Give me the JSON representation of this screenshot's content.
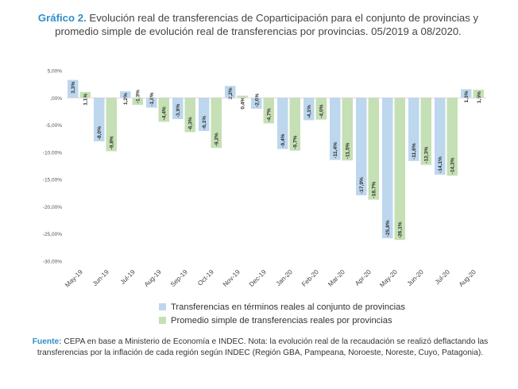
{
  "header": {
    "lead": "Gráfico 2.",
    "text": "Evolución real de transferencias de Coparticipación para el conjunto de provincias y promedio simple de evolución real de transferencias por provincias. 05/2019 a 08/2020."
  },
  "footer": {
    "lead": "Fuente:",
    "text": "CEPA en base a Ministerio de Economía e INDEC. Nota: la evolución real de la recaudación se realizó deflactando las transferencias por la inflación de cada región según INDEC (Región GBA, Pampeana, Noroeste, Noreste, Cuyo, Patagonia)."
  },
  "chart_data": {
    "type": "bar",
    "categories": [
      "May-19",
      "Jun-19",
      "Jul-19",
      "Aug-19",
      "Sep-19",
      "Oct-19",
      "Nov-19",
      "Dec-19",
      "Jan-20",
      "Feb-20",
      "Mar-20",
      "Apr-20",
      "May-20",
      "Jun-20",
      "Jul-20",
      "Aug-20"
    ],
    "series": [
      {
        "name": "Transferencias en términos reales al conjunto de provincias",
        "color": "#bdd7ee",
        "values": [
          3.3,
          -8.0,
          1.2,
          -1.8,
          -3.9,
          -6.1,
          2.2,
          -2.0,
          -9.4,
          -4.1,
          -11.4,
          -17.9,
          -25.8,
          -11.6,
          -14.1,
          1.6
        ],
        "labels": [
          "3,3%",
          "-8,0%",
          "1,2%",
          "-1,8%",
          "-3,9%",
          "-6,1%",
          "2,2%",
          "-2,0%",
          "-9,4%",
          "-4,1%",
          "-11,4%",
          "-17,9%",
          "-25,8%",
          "-11,6%",
          "-14,1%",
          "1,6%"
        ]
      },
      {
        "name": "Promedio simple de transferencias reales por provincias",
        "color": "#c5e0b4",
        "values": [
          1.1,
          -9.8,
          -1.3,
          -4.4,
          -6.3,
          -9.2,
          0.4,
          -4.7,
          -9.7,
          -4.0,
          -11.5,
          -18.7,
          -26.1,
          -12.3,
          -14.3,
          1.5
        ],
        "labels": [
          "1,1%",
          "-9,8%",
          "-1,3%",
          "-4,4%",
          "-6,3%",
          "-9,2%",
          "0,4%",
          "-4,7%",
          "-9,7%",
          "-4,0%",
          "-11,5%",
          "-18,7%",
          "-26,1%",
          "-12,3%",
          "-14,3%",
          "1,5%"
        ]
      }
    ],
    "yticks": [
      5,
      0,
      -5,
      -10,
      -15,
      -20,
      -25,
      -30
    ],
    "ytick_labels": [
      "5,00%",
      ",00%",
      "-5,00%",
      "-10,00%",
      "-15,00%",
      "-20,00%",
      "-25,00%",
      "-30,00%"
    ],
    "ylim": [
      -30,
      5
    ],
    "grid": false,
    "legend_position": "bottom"
  }
}
